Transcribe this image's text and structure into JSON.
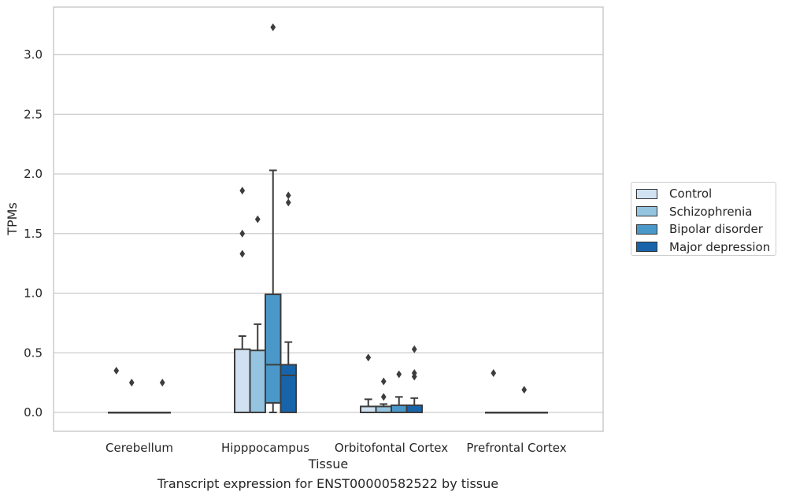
{
  "chart_data": {
    "type": "box",
    "title": "",
    "xlabel": "Tissue",
    "ylabel": "TPMs",
    "ylim": [
      -0.16,
      3.41
    ],
    "yticks": [
      "0.0",
      "0.5",
      "1.0",
      "1.5",
      "2.0",
      "2.5",
      "3.0"
    ],
    "grid": true,
    "legend_position": "right",
    "categories": [
      "Cerebellum",
      "Hipppocampus",
      "Orbitofontal Cortex",
      "Prefrontal Cortex"
    ],
    "series": [
      {
        "name": "Control",
        "color": "#d0e1f2",
        "boxes": [
          {
            "q1": 0,
            "median": 0,
            "q3": 0,
            "whisker_low": 0,
            "whisker_high": 0,
            "outliers": [
              0.35
            ]
          },
          {
            "q1": 0,
            "median": 0,
            "q3": 0.53,
            "whisker_low": 0,
            "whisker_high": 0.64,
            "outliers": [
              1.86,
              1.5,
              1.33
            ]
          },
          {
            "q1": 0,
            "median": 0,
            "q3": 0.05,
            "whisker_low": 0,
            "whisker_high": 0.11,
            "outliers": [
              0.46
            ]
          },
          {
            "q1": 0,
            "median": 0,
            "q3": 0,
            "whisker_low": 0,
            "whisker_high": 0,
            "outliers": [
              0.33
            ]
          }
        ]
      },
      {
        "name": "Schizophrenia",
        "color": "#94c4df",
        "boxes": [
          {
            "q1": 0,
            "median": 0,
            "q3": 0,
            "whisker_low": 0,
            "whisker_high": 0,
            "outliers": [
              0.25
            ]
          },
          {
            "q1": 0,
            "median": 0,
            "q3": 0.52,
            "whisker_low": 0,
            "whisker_high": 0.74,
            "outliers": [
              1.62
            ]
          },
          {
            "q1": 0,
            "median": 0,
            "q3": 0.05,
            "whisker_low": 0,
            "whisker_high": 0.07,
            "outliers": [
              0.26,
              0.13
            ]
          },
          {
            "q1": 0,
            "median": 0,
            "q3": 0,
            "whisker_low": 0,
            "whisker_high": 0,
            "outliers": []
          }
        ]
      },
      {
        "name": "Bipolar disorder",
        "color": "#4a98c9",
        "boxes": [
          {
            "q1": 0,
            "median": 0,
            "q3": 0,
            "whisker_low": 0,
            "whisker_high": 0,
            "outliers": []
          },
          {
            "q1": 0.08,
            "median": 0.4,
            "q3": 0.99,
            "whisker_low": 0,
            "whisker_high": 2.03,
            "outliers": [
              3.23
            ]
          },
          {
            "q1": 0,
            "median": 0,
            "q3": 0.06,
            "whisker_low": 0,
            "whisker_high": 0.13,
            "outliers": [
              0.32
            ]
          },
          {
            "q1": 0,
            "median": 0,
            "q3": 0,
            "whisker_low": 0,
            "whisker_high": 0,
            "outliers": [
              0.19
            ]
          }
        ]
      },
      {
        "name": "Major depression",
        "color": "#1764ab",
        "boxes": [
          {
            "q1": 0,
            "median": 0,
            "q3": 0,
            "whisker_low": 0,
            "whisker_high": 0,
            "outliers": [
              0.25
            ]
          },
          {
            "q1": 0,
            "median": 0.31,
            "q3": 0.4,
            "whisker_low": 0,
            "whisker_high": 0.59,
            "outliers": [
              1.82,
              1.76
            ]
          },
          {
            "q1": 0,
            "median": 0,
            "q3": 0.06,
            "whisker_low": 0,
            "whisker_high": 0.12,
            "outliers": [
              0.53,
              0.33,
              0.3
            ]
          },
          {
            "q1": 0,
            "median": 0,
            "q3": 0,
            "whisker_low": 0,
            "whisker_high": 0,
            "outliers": []
          }
        ]
      }
    ]
  },
  "caption": "Transcript expression for ENST00000582522 by tissue"
}
